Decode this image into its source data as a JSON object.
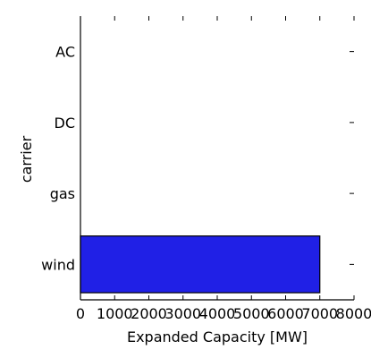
{
  "chart_data": {
    "type": "bar",
    "orientation": "horizontal",
    "categories": [
      "AC",
      "DC",
      "gas",
      "wind"
    ],
    "values": [
      0,
      0,
      0,
      7000
    ],
    "xlabel": "Expanded Capacity [MW]",
    "ylabel": "carrier",
    "xlim": [
      0,
      8000
    ],
    "xticks": [
      0,
      1000,
      2000,
      3000,
      4000,
      5000,
      6000,
      7000,
      8000
    ],
    "grid": false,
    "legend": false,
    "bar_color": "#2020e6",
    "bar_edge_color": "#000000"
  }
}
